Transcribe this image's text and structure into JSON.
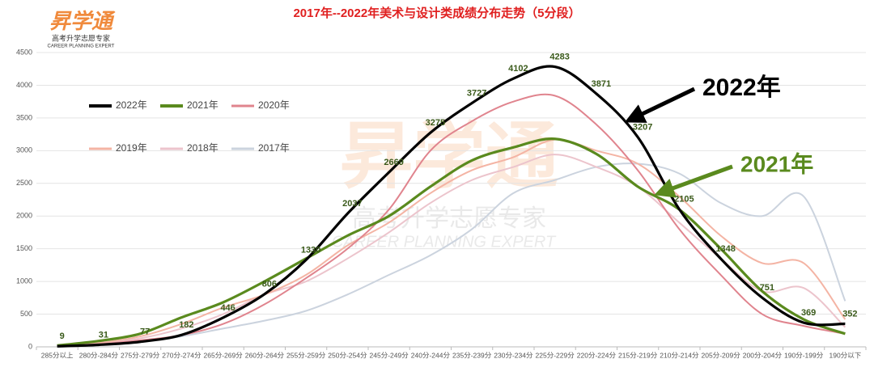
{
  "chart_data": {
    "type": "line",
    "title": "2017年--2022年美术与设计类成绩分布走势（5分段）",
    "logo": {
      "name": "昇学通",
      "tagline": "高考升学志愿专家",
      "english": "CAREER PLANNING EXPERT"
    },
    "annotations": [
      "2022年",
      "2021年"
    ],
    "categories": [
      "285分以上",
      "280分-284分",
      "275分-279分",
      "270分-274分",
      "265分-269分",
      "260分-264分",
      "255分-259分",
      "250分-254分",
      "245分-249分",
      "240分-244分",
      "235分-239分",
      "230分-234分",
      "225分-229分",
      "220分-224分",
      "215分-219分",
      "210分-214分",
      "205分-209分",
      "200分-204分",
      "190分-199分",
      "190分以下"
    ],
    "series": [
      {
        "name": "2022年",
        "color": "#000000",
        "values": [
          9,
          31,
          77,
          182,
          446,
          806,
          1330,
          2037,
          2669,
          3275,
          3727,
          4102,
          4283,
          3871,
          3207,
          2105,
          1348,
          751,
          369,
          352
        ],
        "show_labels": true
      },
      {
        "name": "2021年",
        "color": "#5a8a1e",
        "values": [
          20,
          90,
          200,
          450,
          680,
          1000,
          1350,
          1700,
          2000,
          2450,
          2850,
          3050,
          3180,
          2950,
          2450,
          2100,
          1500,
          850,
          420,
          200
        ]
      },
      {
        "name": "2020年",
        "color": "#e0848e",
        "values": [
          10,
          40,
          100,
          180,
          350,
          650,
          1050,
          1500,
          2100,
          3000,
          3450,
          3750,
          3840,
          3400,
          2700,
          1800,
          1100,
          500,
          320,
          200
        ]
      },
      {
        "name": "2019年",
        "color": "#f4b4a4",
        "values": [
          15,
          60,
          160,
          350,
          600,
          800,
          1100,
          1550,
          1900,
          2350,
          2700,
          2900,
          3170,
          3000,
          2800,
          2300,
          1700,
          1280,
          1280,
          420
        ]
      },
      {
        "name": "2018年",
        "color": "#ecc4cc",
        "values": [
          10,
          60,
          130,
          280,
          500,
          800,
          1000,
          1350,
          1750,
          2200,
          2550,
          2750,
          2940,
          2750,
          2450,
          1900,
          1350,
          850,
          900,
          300
        ]
      },
      {
        "name": "2017年",
        "color": "#cbd3de",
        "values": [
          5,
          30,
          80,
          160,
          280,
          400,
          550,
          800,
          1100,
          1400,
          1800,
          2350,
          2550,
          2750,
          2800,
          2650,
          2200,
          2000,
          2300,
          700
        ]
      }
    ],
    "ylim": [
      0,
      4500
    ],
    "yticks": [
      0,
      500,
      1000,
      1500,
      2000,
      2500,
      3000,
      3500,
      4000,
      4500
    ],
    "grid": true
  }
}
